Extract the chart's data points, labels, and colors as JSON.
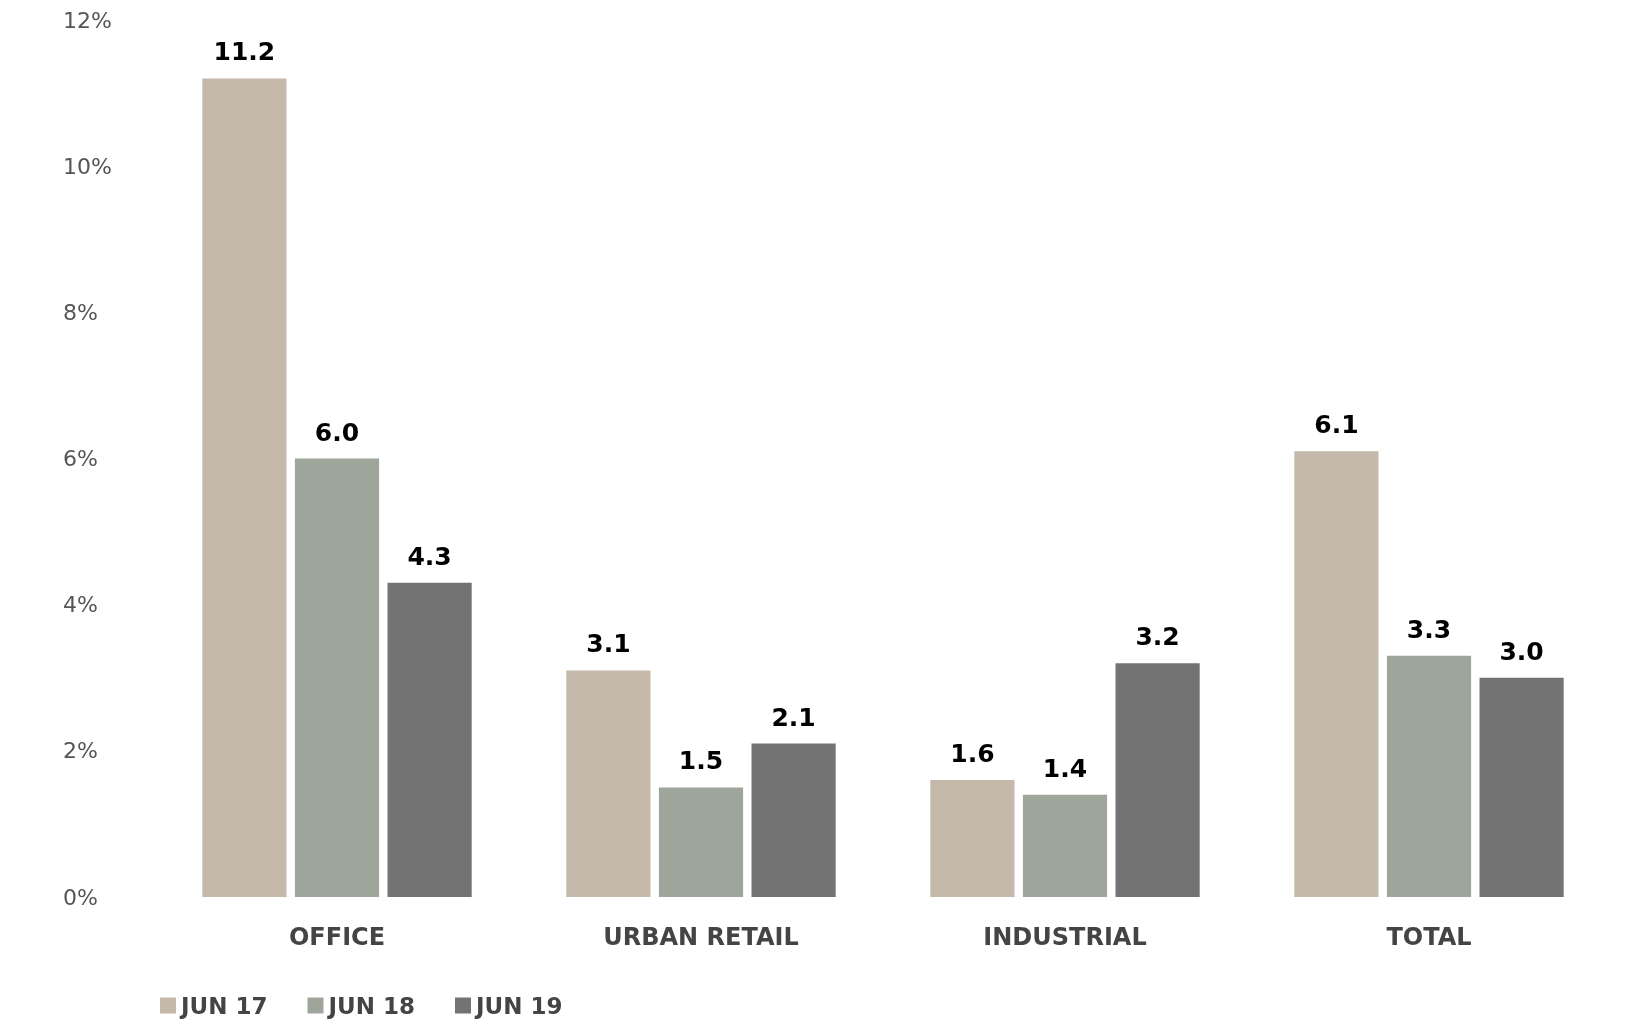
{
  "chart_data": {
    "type": "bar",
    "categories": [
      "OFFICE",
      "URBAN RETAIL",
      "INDUSTRIAL",
      "TOTAL"
    ],
    "series": [
      {
        "name": "JUN 17",
        "color": "#c5b9a9",
        "values": [
          11.2,
          3.1,
          1.6,
          6.1
        ],
        "value_labels": [
          "11.2",
          "3.1",
          "1.6",
          "6.1"
        ]
      },
      {
        "name": "JUN 18",
        "color": "#9ea59a",
        "values": [
          6.0,
          1.5,
          1.4,
          3.3
        ],
        "value_labels": [
          "6.0",
          "1.5",
          "1.4",
          "3.3"
        ]
      },
      {
        "name": "JUN 19",
        "color": "#737373",
        "values": [
          4.3,
          2.1,
          3.2,
          3.0
        ],
        "value_labels": [
          "4.3",
          "2.1",
          "3.2",
          "3.0"
        ]
      }
    ],
    "ylim": [
      0,
      12
    ],
    "yticks": [
      {
        "value": 0,
        "label": "0%"
      },
      {
        "value": 2,
        "label": "2%"
      },
      {
        "value": 4,
        "label": "4%"
      },
      {
        "value": 6,
        "label": "6%"
      },
      {
        "value": 8,
        "label": "8%"
      },
      {
        "value": 10,
        "label": "10%"
      },
      {
        "value": 12,
        "label": "12%"
      }
    ],
    "grid": false,
    "legend": "bottom left"
  }
}
